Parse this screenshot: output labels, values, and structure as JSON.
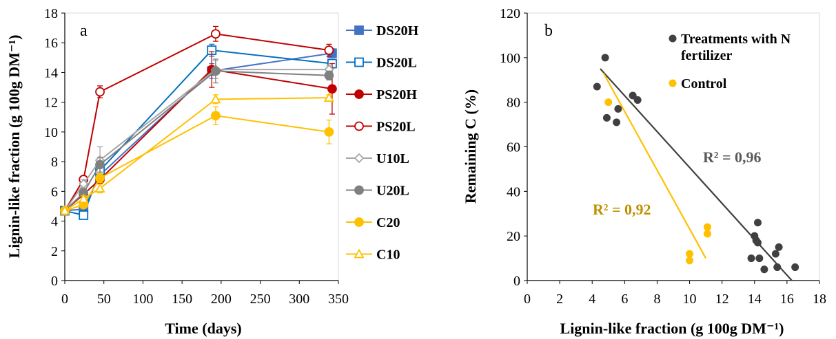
{
  "chart_data": [
    {
      "type": "line",
      "panel_label": "a",
      "xlabel": "Time (days)",
      "ylabel": "Lignin-like fraction (g 100g DM⁻¹)",
      "xlim": [
        0,
        350
      ],
      "ylim": [
        0,
        18
      ],
      "xticks": [
        0,
        50,
        100,
        150,
        200,
        250,
        300,
        350
      ],
      "yticks": [
        0,
        2,
        4,
        6,
        8,
        10,
        12,
        14,
        16,
        18
      ],
      "grid": false,
      "legend_position": "right",
      "series": [
        {
          "name": "DS20H",
          "color": "#4472C4",
          "marker": "square",
          "filled": true,
          "x": [
            0,
            24,
            45,
            188,
            342
          ],
          "y": [
            4.7,
            4.8,
            7.1,
            14.1,
            15.3
          ],
          "err": [
            0.1,
            0.2,
            0.4,
            0.5,
            0.3
          ]
        },
        {
          "name": "DS20L",
          "color": "#0070C0",
          "marker": "square",
          "filled": false,
          "x": [
            0,
            24,
            45,
            188,
            342
          ],
          "y": [
            4.7,
            4.4,
            7.4,
            15.5,
            14.6
          ],
          "err": [
            0.1,
            0.2,
            0.4,
            0.4,
            0.3
          ]
        },
        {
          "name": "PS20H",
          "color": "#C00000",
          "marker": "circle",
          "filled": true,
          "x": [
            0,
            24,
            45,
            188,
            342
          ],
          "y": [
            4.7,
            5.8,
            6.8,
            14.2,
            12.9
          ],
          "err": [
            0.1,
            0.2,
            0.3,
            1.2,
            1.7
          ]
        },
        {
          "name": "PS20L",
          "color": "#C00000",
          "marker": "circle",
          "filled": false,
          "x": [
            0,
            24,
            45,
            193,
            338
          ],
          "y": [
            4.7,
            6.8,
            12.7,
            16.6,
            15.5
          ],
          "err": [
            0.1,
            0.2,
            0.4,
            0.5,
            0.4
          ]
        },
        {
          "name": "U10L",
          "color": "#A6A6A6",
          "marker": "diamond",
          "filled": false,
          "x": [
            0,
            24,
            45,
            193,
            338
          ],
          "y": [
            4.7,
            6.5,
            8.1,
            14.2,
            14.2
          ],
          "err": [
            0.1,
            0.3,
            0.9,
            0.6,
            0.3
          ]
        },
        {
          "name": "U20L",
          "color": "#808080",
          "marker": "circle",
          "filled": true,
          "x": [
            0,
            24,
            45,
            193,
            338
          ],
          "y": [
            4.7,
            5.9,
            7.8,
            14.1,
            13.8
          ],
          "err": [
            0.1,
            0.3,
            0.5,
            0.8,
            0.3
          ]
        },
        {
          "name": "C20",
          "color": "#FFC000",
          "marker": "circle",
          "filled": true,
          "x": [
            0,
            24,
            45,
            193,
            338
          ],
          "y": [
            4.7,
            5.1,
            6.9,
            11.1,
            10.0
          ],
          "err": [
            0.1,
            0.2,
            0.3,
            0.6,
            0.8
          ]
        },
        {
          "name": "C10",
          "color": "#FFC000",
          "marker": "triangle",
          "filled": false,
          "x": [
            0,
            24,
            45,
            193,
            338
          ],
          "y": [
            4.7,
            5.5,
            6.2,
            12.2,
            12.3
          ],
          "err": [
            0.1,
            0.2,
            0.3,
            0.3,
            0.2
          ]
        }
      ]
    },
    {
      "type": "scatter",
      "panel_label": "b",
      "xlabel": "Lignin-like fraction (g 100g DM⁻¹)",
      "ylabel": "Remaining C (%)",
      "xlim": [
        0,
        18
      ],
      "ylim": [
        0,
        120
      ],
      "xticks": [
        0,
        2,
        4,
        6,
        8,
        10,
        12,
        14,
        16,
        18
      ],
      "yticks": [
        0,
        20,
        40,
        60,
        80,
        100,
        120
      ],
      "grid": false,
      "legend_position": "top-right",
      "series": [
        {
          "name": "Treatments with N fertilizer",
          "color": "#404040",
          "x": [
            4.3,
            4.8,
            4.9,
            5.5,
            5.6,
            6.5,
            6.8,
            13.8,
            14.0,
            14.1,
            14.2,
            14.2,
            14.3,
            14.6,
            15.3,
            15.4,
            15.5,
            16.5
          ],
          "y": [
            87,
            100,
            73,
            71,
            77,
            83,
            81,
            10,
            20,
            18,
            26,
            17,
            10,
            5,
            12,
            6,
            15,
            6
          ]
        },
        {
          "name": "Control",
          "color": "#FFC000",
          "x": [
            5.0,
            10.0,
            10.0,
            11.1,
            11.1
          ],
          "y": [
            80,
            12,
            9,
            24,
            21
          ]
        }
      ],
      "trendlines": [
        {
          "color": "#404040",
          "x": [
            4.5,
            16.3
          ],
          "y": [
            95,
            0
          ],
          "label": "R² = 0,96",
          "label_color": "#595959"
        },
        {
          "color": "#FFC000",
          "x": [
            4.7,
            11.0
          ],
          "y": [
            93,
            10
          ],
          "label": "R² = 0,92",
          "label_color": "#BF9000"
        }
      ]
    }
  ]
}
